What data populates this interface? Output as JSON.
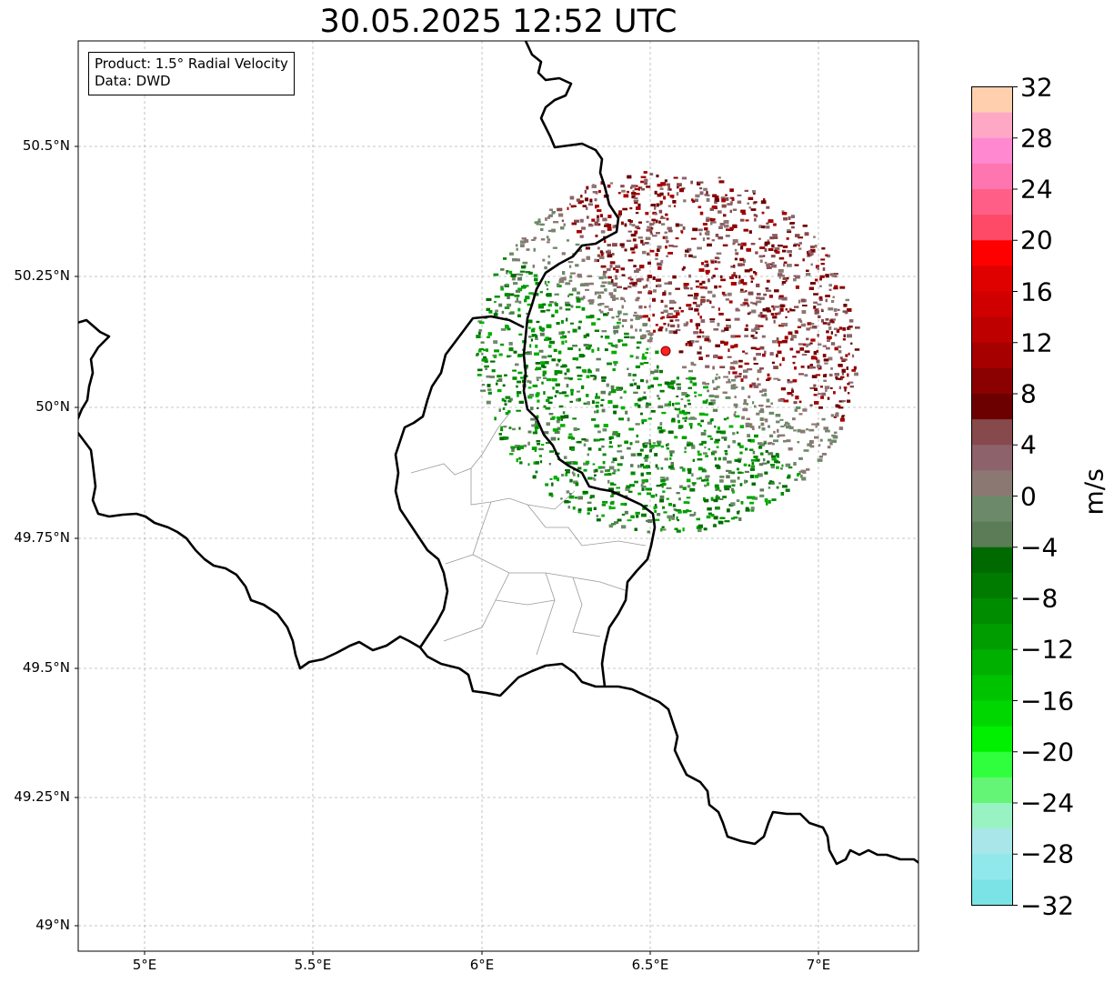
{
  "title": "30.05.2025 12:52 UTC",
  "info": {
    "product": "Product: 1.5° Radial Velocity",
    "data": "Data: DWD"
  },
  "axes": {
    "y_ticks": [
      "50.5°N",
      "50.25°N",
      "50°N",
      "49.75°N",
      "49.5°N",
      "49.25°N",
      "49°N"
    ],
    "x_ticks": [
      "5°E",
      "5.5°E",
      "6°E",
      "6.5°E",
      "7°E"
    ]
  },
  "colorbar": {
    "label": "m/s",
    "ticks": [
      "32",
      "28",
      "24",
      "20",
      "16",
      "12",
      "8",
      "4",
      "0",
      "−4",
      "−8",
      "−12",
      "−16",
      "−20",
      "−24",
      "−28",
      "−32"
    ],
    "colors": [
      "#ffcfae",
      "#ffa8c6",
      "#ff88d1",
      "#ff75b0",
      "#ff5f86",
      "#ff4a67",
      "#ff0000",
      "#df0000",
      "#d00000",
      "#bf0000",
      "#a60000",
      "#8b0000",
      "#6c0000",
      "#864a4c",
      "#8d626b",
      "#8c7873",
      "#6c8a69",
      "#5b7c57",
      "#006a00",
      "#007b00",
      "#008c00",
      "#009d00",
      "#00b000",
      "#00c300",
      "#00d700",
      "#00f000",
      "#2fff3c",
      "#64f576",
      "#98f2c1",
      "#a9e6ea",
      "#90e8ea",
      "#7be3e6"
    ]
  },
  "radar_site": {
    "color": "#ff2020"
  }
}
